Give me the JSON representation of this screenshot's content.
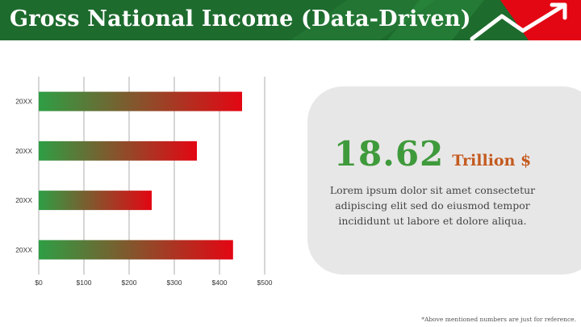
{
  "header": {
    "title": "Gross National Income (Data-Driven)"
  },
  "colors": {
    "bar_start": "#2e9e44",
    "bar_end": "#e30613",
    "header_green": "#1e6b2e",
    "accent_red": "#e30613",
    "stat_green": "#3f9a3c",
    "unit_orange": "#c45a1f",
    "card_bg": "#e8e7e7"
  },
  "icons": {
    "header_decoration": "trend-arrow-icon"
  },
  "chart_data": {
    "type": "bar",
    "orientation": "horizontal",
    "categories": [
      "20XX",
      "20XX",
      "20XX",
      "20XX"
    ],
    "values": [
      450,
      350,
      250,
      430
    ],
    "xlim": [
      0,
      500
    ],
    "x_ticks": [
      "$0",
      "$100",
      "$200",
      "$300",
      "$400",
      "$500"
    ],
    "grid": true,
    "legend": "none"
  },
  "stat": {
    "value": "18.62",
    "unit": "Trillion $"
  },
  "description": "Lorem ipsum dolor sit amet consectetur adipiscing elit sed do eiusmod tempor incididunt ut labore et dolore aliqua.",
  "footnote": "*Above mentioned numbers are just for reference."
}
